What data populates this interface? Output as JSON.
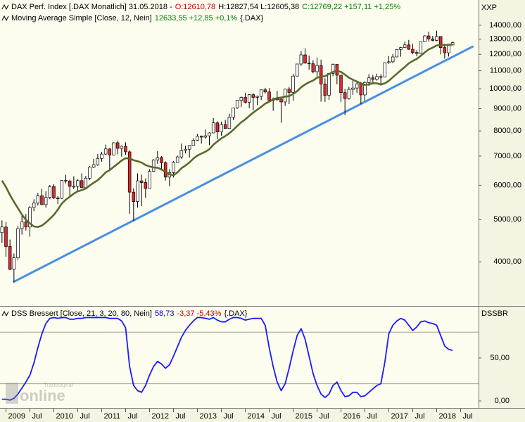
{
  "chart_data": [
    {
      "type": "candlestick",
      "header": [
        {
          "text": "DAX Perf. Index [.DAX  Monatlich] 31.05.2018 -",
          "color": "#000000"
        },
        {
          "text": "O:12610,78",
          "color": "#cc0000"
        },
        {
          "text": "H:12827,54 L:12605,38",
          "color": "#000000"
        },
        {
          "text": "C:12769,22 +157,11 +1,25%",
          "color": "#008000"
        }
      ],
      "series_header": [
        {
          "text": "12633,55 +12,85 +0,1%",
          "color": "#008000"
        },
        {
          "text": "{.DAX}",
          "color": "#000000"
        }
      ],
      "axis_label": "XXP",
      "log": true,
      "ylim": [
        3190,
        16000
      ],
      "yticks": [
        {
          "value": 4000,
          "label": "4000,00"
        },
        {
          "value": 5000,
          "label": "5000,00"
        },
        {
          "value": 6000,
          "label": "6000,00"
        },
        {
          "value": 7000,
          "label": "7000,00"
        },
        {
          "value": 8000,
          "label": "8000,00"
        },
        {
          "value": 9000,
          "label": "9000,00"
        },
        {
          "value": 10000,
          "label": "10000,00"
        },
        {
          "value": 11000,
          "label": "11000,00"
        },
        {
          "value": 12000,
          "label": "12000,00"
        },
        {
          "value": 13000,
          "label": "13000,00"
        },
        {
          "value": 14000,
          "label": "14000,00"
        }
      ],
      "xlim": [
        "2008-12",
        "2018-11"
      ],
      "up_color": "#ffffff",
      "down_color": "#e3262b",
      "x": [
        "2008-12",
        "2009-01",
        "2009-02",
        "2009-03",
        "2009-04",
        "2009-05",
        "2009-06",
        "2009-07",
        "2009-08",
        "2009-09",
        "2009-10",
        "2009-11",
        "2009-12",
        "2010-01",
        "2010-02",
        "2010-03",
        "2010-04",
        "2010-05",
        "2010-06",
        "2010-07",
        "2010-08",
        "2010-09",
        "2010-10",
        "2010-11",
        "2010-12",
        "2011-01",
        "2011-02",
        "2011-03",
        "2011-04",
        "2011-05",
        "2011-06",
        "2011-07",
        "2011-08",
        "2011-09",
        "2011-10",
        "2011-11",
        "2011-12",
        "2012-01",
        "2012-02",
        "2012-03",
        "2012-04",
        "2012-05",
        "2012-06",
        "2012-07",
        "2012-08",
        "2012-09",
        "2012-10",
        "2012-11",
        "2012-12",
        "2013-01",
        "2013-02",
        "2013-03",
        "2013-04",
        "2013-05",
        "2013-06",
        "2013-07",
        "2013-08",
        "2013-09",
        "2013-10",
        "2013-11",
        "2013-12",
        "2014-01",
        "2014-02",
        "2014-03",
        "2014-04",
        "2014-05",
        "2014-06",
        "2014-07",
        "2014-08",
        "2014-09",
        "2014-10",
        "2014-11",
        "2014-12",
        "2015-01",
        "2015-02",
        "2015-03",
        "2015-04",
        "2015-05",
        "2015-06",
        "2015-07",
        "2015-08",
        "2015-09",
        "2015-10",
        "2015-11",
        "2015-12",
        "2016-01",
        "2016-02",
        "2016-03",
        "2016-04",
        "2016-05",
        "2016-06",
        "2016-07",
        "2016-08",
        "2016-09",
        "2016-10",
        "2016-11",
        "2016-12",
        "2017-01",
        "2017-02",
        "2017-03",
        "2017-04",
        "2017-05",
        "2017-06",
        "2017-07",
        "2017-08",
        "2017-09",
        "2017-10",
        "2017-11",
        "2017-12",
        "2018-01",
        "2018-02",
        "2018-03",
        "2018-04",
        "2018-05"
      ],
      "open": [
        4669,
        4810,
        4338,
        3843,
        4085,
        4770,
        4941,
        4809,
        5332,
        5458,
        5675,
        5415,
        5625,
        5957,
        5608,
        5598,
        6154,
        6136,
        5965,
        5966,
        6148,
        5925,
        6229,
        6601,
        6688,
        6914,
        7077,
        7272,
        7041,
        7514,
        7294,
        7376,
        7159,
        5785,
        5502,
        6141,
        6088,
        5898,
        6458,
        6856,
        6947,
        6761,
        6264,
        6416,
        6772,
        6970,
        7216,
        7260,
        7405,
        7612,
        7776,
        7741,
        7795,
        7914,
        8348,
        7959,
        8276,
        8103,
        8594,
        9033,
        9405,
        9552,
        9306,
        9692,
        9556,
        9603,
        9943,
        9833,
        9407,
        9470,
        9474,
        9326,
        9980,
        9806,
        10694,
        11402,
        11966,
        11454,
        11414,
        10945,
        11309,
        10259,
        9660,
        10850,
        11382,
        10743,
        9798,
        9495,
        9966,
        10039,
        10263,
        9680,
        10337,
        10593,
        10511,
        10665,
        10640,
        11481,
        11535,
        11834,
        12313,
        12438,
        12615,
        12325,
        12118,
        12056,
        12829,
        13230,
        13024,
        12918,
        13189,
        12436,
        12097,
        12610.78
      ],
      "high": [
        4980,
        4940,
        4500,
        4180,
        4840,
        5100,
        5150,
        5370,
        5570,
        5760,
        5890,
        5810,
        6010,
        6030,
        5670,
        6160,
        6340,
        6180,
        6290,
        6200,
        6390,
        6300,
        6640,
        6900,
        7080,
        7160,
        7440,
        7300,
        7530,
        7600,
        7400,
        7530,
        7220,
        5900,
        6390,
        6350,
        6220,
        6530,
        6890,
        7190,
        7000,
        6810,
        6530,
        6820,
        7020,
        7480,
        7400,
        7420,
        7700,
        7870,
        7810,
        8060,
        7940,
        8560,
        8420,
        8400,
        8480,
        8770,
        9050,
        9420,
        9600,
        9790,
        9710,
        9760,
        9650,
        9960,
        10050,
        10030,
        9550,
        9890,
        9480,
        10000,
        10090,
        10810,
        11410,
        12220,
        12390,
        11920,
        11630,
        11800,
        11670,
        10570,
        10850,
        11430,
        11390,
        10750,
        9990,
        10100,
        10490,
        10370,
        10370,
        10400,
        10800,
        10760,
        10830,
        10800,
        11490,
        11890,
        12030,
        12320,
        12480,
        12840,
        12950,
        12680,
        12260,
        12830,
        13270,
        13530,
        13230,
        13600,
        13200,
        12600,
        12650,
        12827.54
      ],
      "low": [
        4420,
        4110,
        3830,
        3588,
        4040,
        4620,
        4720,
        4570,
        5230,
        5390,
        5400,
        5330,
        5570,
        5580,
        5430,
        5580,
        6060,
        5640,
        5880,
        5820,
        5920,
        5900,
        6170,
        6570,
        6650,
        6800,
        7050,
        6510,
        7030,
        7070,
        6980,
        7050,
        5160,
        4970,
        5330,
        5370,
        5610,
        5900,
        6440,
        6720,
        6500,
        6150,
        5970,
        6250,
        6760,
        6900,
        7100,
        6950,
        7400,
        7590,
        7480,
        7680,
        7420,
        7900,
        7650,
        7800,
        8100,
        8090,
        8470,
        8990,
        9080,
        9250,
        9020,
        8910,
        9170,
        9420,
        9750,
        9400,
        8900,
        9390,
        8350,
        9130,
        9220,
        9380,
        10690,
        11290,
        11420,
        11060,
        10850,
        10670,
        9340,
        9330,
        9430,
        10690,
        10240,
        9310,
        8700,
        9440,
        9680,
        9790,
        9210,
        9370,
        10150,
        10230,
        10440,
        10170,
        10620,
        11410,
        11450,
        11820,
        11850,
        12410,
        12290,
        12000,
        11870,
        12030,
        12810,
        12850,
        12860,
        12870,
        12000,
        11730,
        11860,
        12605.38
      ],
      "close": [
        4810,
        4338,
        3843,
        4085,
        4770,
        4941,
        4809,
        5332,
        5458,
        5675,
        5415,
        5625,
        5957,
        5608,
        5598,
        6154,
        6136,
        5965,
        5966,
        6148,
        5925,
        6229,
        6601,
        6688,
        6914,
        7077,
        7272,
        7041,
        7514,
        7294,
        7376,
        7159,
        5785,
        5502,
        6141,
        6088,
        5898,
        6458,
        6856,
        6947,
        6761,
        6264,
        6416,
        6772,
        6970,
        7216,
        7260,
        7405,
        7612,
        7776,
        7741,
        7795,
        7914,
        8348,
        7959,
        8276,
        8103,
        8594,
        9033,
        9405,
        9552,
        9306,
        9692,
        9556,
        9603,
        9943,
        9833,
        9407,
        9470,
        9474,
        9326,
        9980,
        9806,
        10694,
        11402,
        11966,
        11454,
        11414,
        10945,
        11309,
        10259,
        9660,
        10850,
        11382,
        10743,
        9798,
        9495,
        9966,
        10039,
        10263,
        9680,
        10337,
        10593,
        10511,
        10665,
        10640,
        11481,
        11535,
        11834,
        12313,
        12438,
        12615,
        12325,
        12118,
        12056,
        12829,
        13230,
        13024,
        12918,
        13189,
        12436,
        12097,
        12612,
        12769.22
      ],
      "series": [
        {
          "name": "Moving Average Simple [Close, 12, Nein]",
          "color": "#586a2c",
          "values": [
            6150,
            5941,
            5699,
            5495,
            5313,
            5133,
            4999,
            4903,
            4823,
            4810,
            4845,
            4925,
            5021,
            5127,
            5273,
            5445,
            5559,
            5644,
            5741,
            5809,
            5848,
            5894,
            5993,
            6081,
            6161,
            6283,
            6423,
            6497,
            6612,
            6722,
            6840,
            6924,
            6913,
            6852,
            6814,
            6764,
            6679,
            6627,
            6593,
            6585,
            6522,
            6436,
            6356,
            6324,
            6423,
            6566,
            6659,
            6769,
            6911,
            7021,
            7095,
            7166,
            7262,
            7435,
            7564,
            7689,
            7784,
            7899,
            8046,
            8213,
            8375,
            8502,
            8665,
            8812,
            8952,
            9085,
            9241,
            9336,
            9450,
            9523,
            9547,
            9595,
            9616,
            9732,
            9875,
            10075,
            10230,
            10352,
            10445,
            10603,
            10669,
            10685,
            10812,
            10928,
            11007,
            10932,
            10773,
            10606,
            10488,
            10392,
            10287,
            10206,
            10234,
            10305,
            10289,
            10228,
            10289,
            10434,
            10629,
            10824,
            11024,
            11220,
            11441,
            11589,
            11711,
            11904,
            12118,
            12317,
            12436,
            12574,
            12624,
            12606,
            12621,
            12633.55
          ]
        }
      ],
      "trendline": {
        "x": [
          "2009-03",
          "2018-10"
        ],
        "values": [
          3600,
          12500
        ],
        "color": "#4a8fe0"
      },
      "watermark": {
        "small": "Tradesignal",
        "big": "online"
      }
    },
    {
      "type": "line",
      "axis_label": "DSSBR",
      "series_header": [
        {
          "text": "58,73",
          "color": "#0000cc"
        },
        {
          "text": "-3,37 -5,43%",
          "color": "#cc0000"
        },
        {
          "text": "{.DAX}",
          "color": "#000000"
        }
      ],
      "ylim": [
        -6.5,
        108
      ],
      "yticks": [
        {
          "value": 0,
          "label": "0,00"
        },
        {
          "value": 50,
          "label": "50,00"
        }
      ],
      "levels": [
        20,
        80
      ],
      "xlim": [
        "2008-12",
        "2018-11"
      ],
      "xticks": [
        {
          "value": "2009-01",
          "label": "2009"
        },
        {
          "value": "2009-07",
          "label": "Jul"
        },
        {
          "value": "2010-01",
          "label": "2010"
        },
        {
          "value": "2010-07",
          "label": "Jul"
        },
        {
          "value": "2011-01",
          "label": "2011"
        },
        {
          "value": "2011-07",
          "label": "Jul"
        },
        {
          "value": "2012-01",
          "label": "2012"
        },
        {
          "value": "2012-07",
          "label": "Jul"
        },
        {
          "value": "2013-01",
          "label": "2013"
        },
        {
          "value": "2013-07",
          "label": "Jul"
        },
        {
          "value": "2014-01",
          "label": "2014"
        },
        {
          "value": "2014-07",
          "label": "Jul"
        },
        {
          "value": "2015-01",
          "label": "2015"
        },
        {
          "value": "2015-07",
          "label": "Jul"
        },
        {
          "value": "2016-01",
          "label": "2016"
        },
        {
          "value": "2016-07",
          "label": "Jul"
        },
        {
          "value": "2017-01",
          "label": "2017"
        },
        {
          "value": "2017-07",
          "label": "Jul"
        },
        {
          "value": "2018-01",
          "label": "2018"
        },
        {
          "value": "2018-07",
          "label": "Jul"
        }
      ],
      "x": [
        "2008-12",
        "2009-01",
        "2009-02",
        "2009-03",
        "2009-04",
        "2009-05",
        "2009-06",
        "2009-07",
        "2009-08",
        "2009-09",
        "2009-10",
        "2009-11",
        "2009-12",
        "2010-01",
        "2010-02",
        "2010-03",
        "2010-04",
        "2010-05",
        "2010-06",
        "2010-07",
        "2010-08",
        "2010-09",
        "2010-10",
        "2010-11",
        "2010-12",
        "2011-01",
        "2011-02",
        "2011-03",
        "2011-04",
        "2011-05",
        "2011-06",
        "2011-07",
        "2011-08",
        "2011-09",
        "2011-10",
        "2011-11",
        "2011-12",
        "2012-01",
        "2012-02",
        "2012-03",
        "2012-04",
        "2012-05",
        "2012-06",
        "2012-07",
        "2012-08",
        "2012-09",
        "2012-10",
        "2012-11",
        "2012-12",
        "2013-01",
        "2013-02",
        "2013-03",
        "2013-04",
        "2013-05",
        "2013-06",
        "2013-07",
        "2013-08",
        "2013-09",
        "2013-10",
        "2013-11",
        "2013-12",
        "2014-01",
        "2014-02",
        "2014-03",
        "2014-04",
        "2014-05",
        "2014-06",
        "2014-07",
        "2014-08",
        "2014-09",
        "2014-10",
        "2014-11",
        "2014-12",
        "2015-01",
        "2015-02",
        "2015-03",
        "2015-04",
        "2015-05",
        "2015-06",
        "2015-07",
        "2015-08",
        "2015-09",
        "2015-10",
        "2015-11",
        "2015-12",
        "2016-01",
        "2016-02",
        "2016-03",
        "2016-04",
        "2016-05",
        "2016-06",
        "2016-07",
        "2016-08",
        "2016-09",
        "2016-10",
        "2016-11",
        "2016-12",
        "2017-01",
        "2017-02",
        "2017-03",
        "2017-04",
        "2017-05",
        "2017-06",
        "2017-07",
        "2017-08",
        "2017-09",
        "2017-10",
        "2017-11",
        "2017-12",
        "2018-01",
        "2018-02",
        "2018-03",
        "2018-04",
        "2018-05"
      ],
      "series": [
        {
          "name": "DSS Bressert [Close, 21, 3, 20, 80, Nein]",
          "color": "#1a1aff",
          "values": [
            2,
            2,
            1,
            3,
            8,
            15,
            22,
            30,
            44,
            62,
            78,
            90,
            96,
            97,
            96,
            97,
            97,
            95,
            95,
            96,
            96,
            97,
            97,
            97,
            97,
            97,
            97,
            96,
            96,
            96,
            93,
            85,
            40,
            18,
            12,
            10,
            18,
            30,
            40,
            46,
            43,
            38,
            42,
            52,
            63,
            74,
            82,
            88,
            93,
            97,
            97,
            96,
            95,
            97,
            94,
            92,
            92,
            95,
            97,
            97,
            96,
            94,
            95,
            96,
            96,
            96,
            88,
            62,
            40,
            22,
            12,
            20,
            38,
            58,
            76,
            84,
            72,
            52,
            32,
            18,
            8,
            4,
            8,
            18,
            22,
            12,
            5,
            6,
            10,
            10,
            5,
            6,
            10,
            14,
            18,
            20,
            45,
            78,
            88,
            93,
            96,
            94,
            88,
            82,
            86,
            92,
            93,
            91,
            90,
            88,
            76,
            64,
            60,
            58.73
          ]
        }
      ]
    }
  ]
}
